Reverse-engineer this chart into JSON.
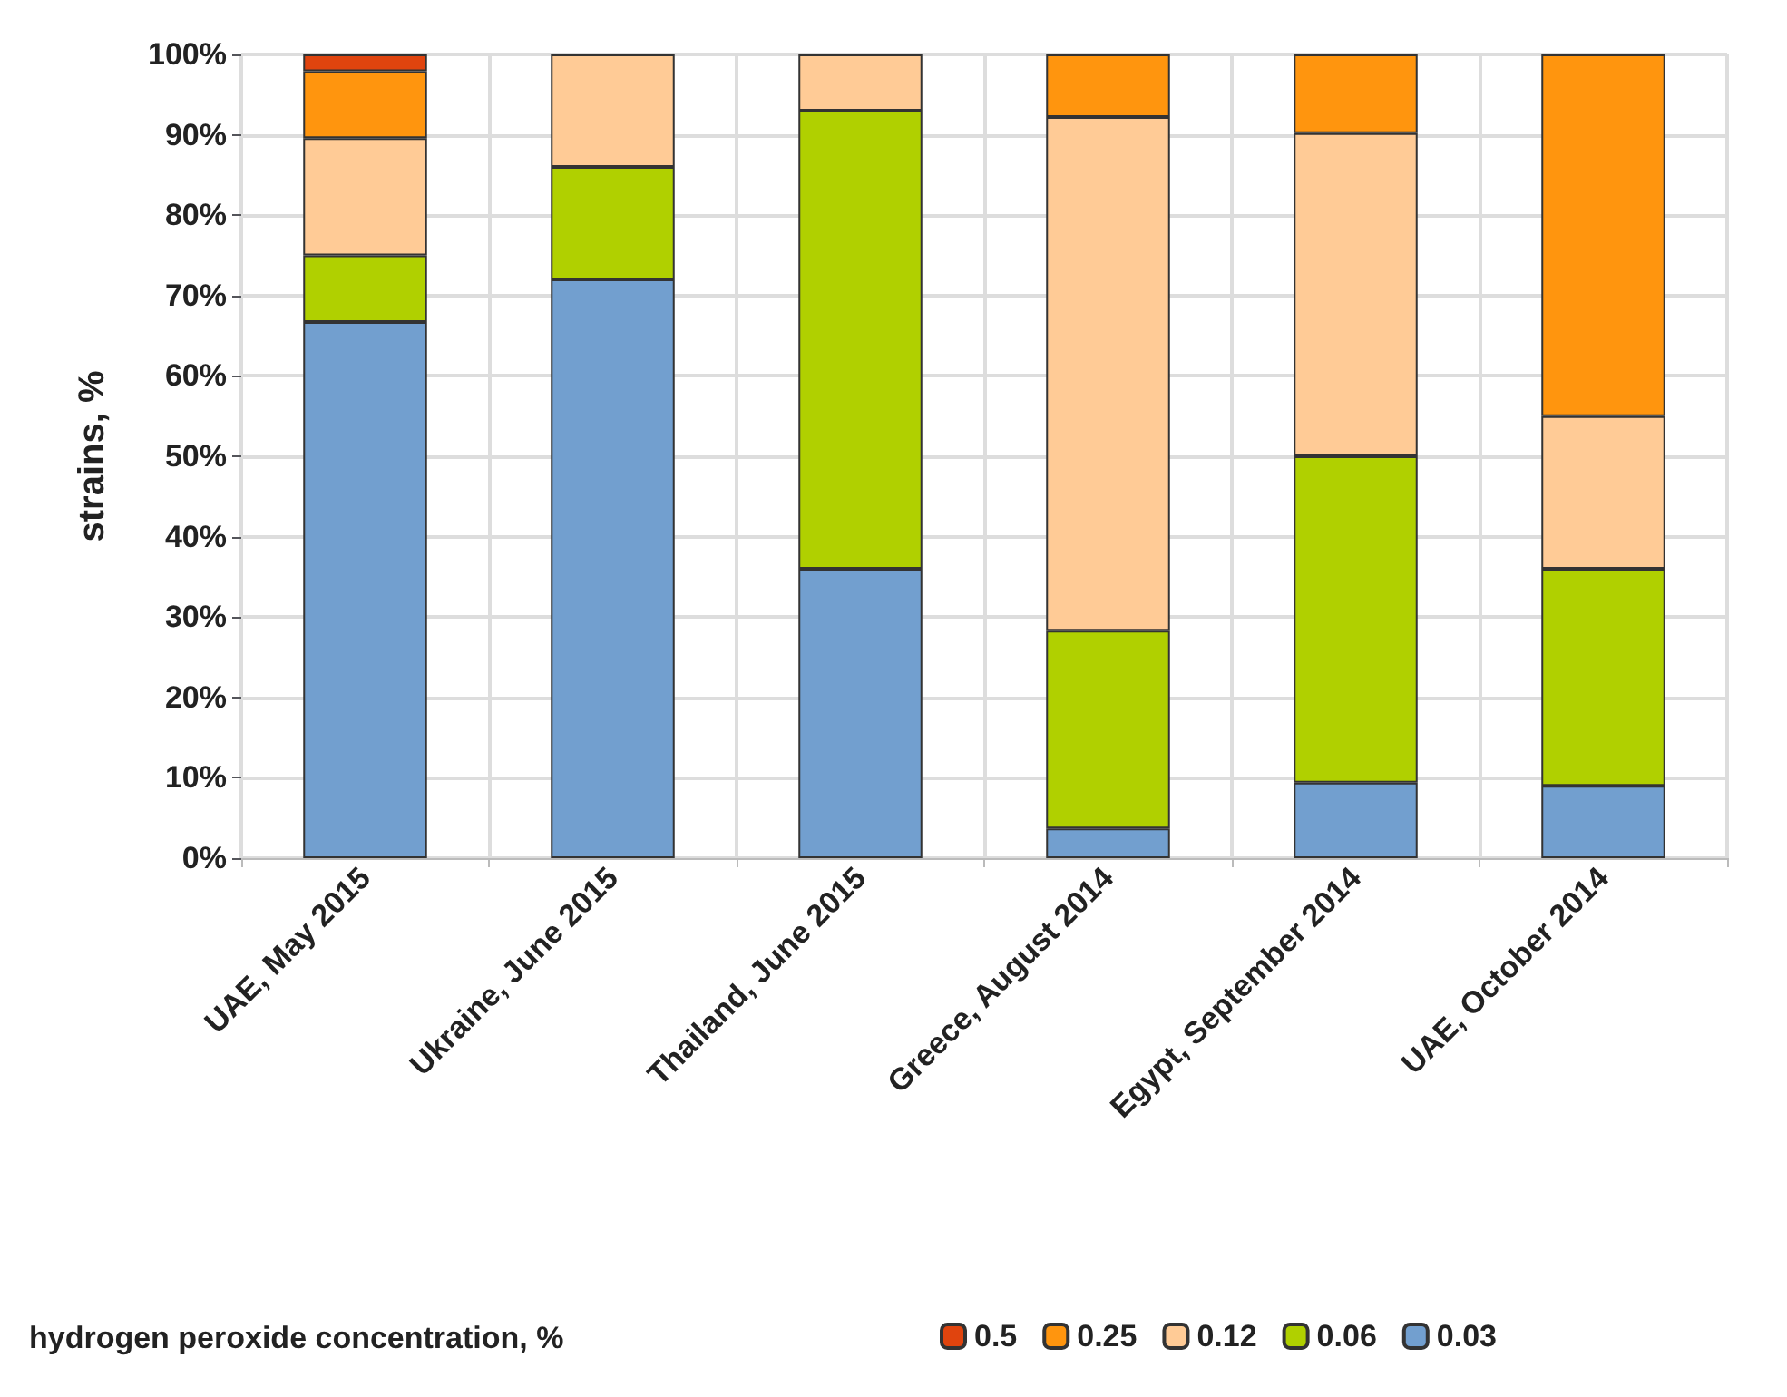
{
  "chart_data": {
    "type": "bar",
    "stacked": true,
    "ylabel": "strains, %",
    "legend_title": "hydrogen peroxide concentration, %",
    "categories": [
      "UAE, May 2015",
      "Ukraine, June 2015",
      "Thailand, June 2015",
      "Greece, August 2014",
      "Egypt, September 2014",
      "UAE, October 2014"
    ],
    "series": [
      {
        "name": "0.03",
        "color": "#729fcf",
        "values": [
          66.7,
          72,
          36,
          3.7,
          9.4,
          9
        ]
      },
      {
        "name": "0.06",
        "color": "#b0d000",
        "values": [
          8.3,
          14,
          57,
          24.6,
          40.6,
          27
        ]
      },
      {
        "name": "0.12",
        "color": "#ffcb96",
        "values": [
          14.6,
          14,
          7,
          63.9,
          40.2,
          19
        ]
      },
      {
        "name": "0.25",
        "color": "#ff950e",
        "values": [
          8.3,
          null,
          null,
          7.8,
          9.8,
          45
        ]
      },
      {
        "name": "0.5",
        "color": "#e0440e",
        "values": [
          2.1,
          null,
          null,
          null,
          null,
          null
        ]
      }
    ],
    "ylim": [
      0,
      100
    ],
    "yticks": [
      {
        "value": 0,
        "label": "0%"
      },
      {
        "value": 10,
        "label": "10%"
      },
      {
        "value": 20,
        "label": "20%"
      },
      {
        "value": 30,
        "label": "30%"
      },
      {
        "value": 40,
        "label": "40%"
      },
      {
        "value": 50,
        "label": "50%"
      },
      {
        "value": 60,
        "label": "60%"
      },
      {
        "value": 70,
        "label": "70%"
      },
      {
        "value": 80,
        "label": "80%"
      },
      {
        "value": 90,
        "label": "90%"
      },
      {
        "value": 100,
        "label": "100%"
      }
    ],
    "grid": true,
    "legend": "bottom"
  }
}
